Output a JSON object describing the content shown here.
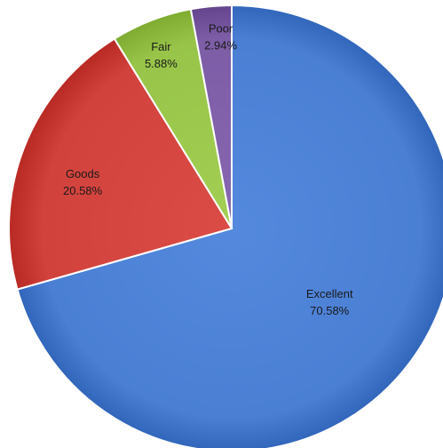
{
  "chart_data": {
    "type": "pie",
    "title": "",
    "start_angle_deg": 0,
    "direction": "clockwise",
    "slices": [
      {
        "label": "Excellent",
        "percent_text": "70.58%",
        "value": 70.58,
        "color": "#4a7fd4"
      },
      {
        "label": "Goods",
        "percent_text": "20.58%",
        "value": 20.58,
        "color": "#d2423c"
      },
      {
        "label": "Fair",
        "percent_text": "5.88%",
        "value": 5.88,
        "color": "#98c549"
      },
      {
        "label": "Poor",
        "percent_text": "2.94%",
        "value": 2.94,
        "color": "#7d5da6"
      }
    ]
  }
}
